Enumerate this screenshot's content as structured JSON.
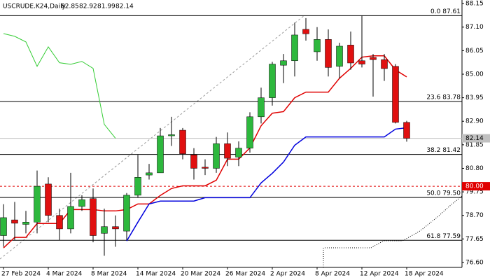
{
  "chart_data": {
    "type": "candlestick",
    "symbol": "USCRUDE.K24,Daily",
    "categories": [
      "27 Feb 2024",
      null,
      null,
      null,
      "4 Mar 2024",
      null,
      null,
      null,
      "8 Mar 2024",
      null,
      null,
      null,
      "14 Mar 2024",
      null,
      null,
      null,
      "20 Mar 2024",
      null,
      null,
      null,
      "26 Mar 2024",
      null,
      null,
      null,
      "2 Apr 2024",
      null,
      null,
      null,
      "8 Apr 2024",
      null,
      null,
      null,
      "12 Apr 2024",
      null,
      null,
      null,
      "18 Apr 2024"
    ],
    "open": [
      77.8,
      78.5,
      78.3,
      78.4,
      80.1,
      78.7,
      78.1,
      79.1,
      79.45,
      77.9,
      78.2,
      78.0,
      79.6,
      80.5,
      80.6,
      82.25,
      82.5,
      81.4,
      80.85,
      80.8,
      81.9,
      81.3,
      81.7,
      83.1,
      83.95,
      85.4,
      85.6,
      87.0,
      86.0,
      86.55,
      85.35,
      86.3,
      85.6,
      85.75,
      85.65,
      85.35,
      82.85
    ],
    "high": [
      79.2,
      79.3,
      78.9,
      80.7,
      80.4,
      79.0,
      80.6,
      79.6,
      79.9,
      79.0,
      78.7,
      79.7,
      81.4,
      81.0,
      82.6,
      83.1,
      82.6,
      81.7,
      81.2,
      82.2,
      82.4,
      82.0,
      83.3,
      84.4,
      85.55,
      85.9,
      87.3,
      87.5,
      87.1,
      87.0,
      86.4,
      86.9,
      87.61,
      85.9,
      85.9,
      85.45,
      82.92
    ],
    "low": [
      77.3,
      77.6,
      77.9,
      77.9,
      78.4,
      77.6,
      77.9,
      78.9,
      77.5,
      76.9,
      77.3,
      77.6,
      79.5,
      80.3,
      80.6,
      81.8,
      81.2,
      80.3,
      80.5,
      80.6,
      80.9,
      80.9,
      81.5,
      82.8,
      83.6,
      84.6,
      84.9,
      86.5,
      85.6,
      84.9,
      84.8,
      85.2,
      85.3,
      84.0,
      84.7,
      82.8,
      81.99
    ],
    "close": [
      78.6,
      78.35,
      78.4,
      80.0,
      78.7,
      78.1,
      79.1,
      79.4,
      77.8,
      78.2,
      78.1,
      79.6,
      80.4,
      80.6,
      82.25,
      82.3,
      81.45,
      80.8,
      80.8,
      81.9,
      81.25,
      81.7,
      83.1,
      83.95,
      85.45,
      85.6,
      86.75,
      86.8,
      86.55,
      85.3,
      86.25,
      85.5,
      85.45,
      85.65,
      85.25,
      82.85,
      82.14
    ],
    "up_color": "#2db83d",
    "down_color": "#e01010",
    "lines": [
      {
        "color": "#33cc33",
        "values": [
          86.81,
          86.69,
          86.44,
          85.35,
          86.22,
          85.51,
          85.44,
          85.57,
          85.26,
          82.76,
          82.14,
          null,
          null,
          null,
          null,
          null,
          null,
          null,
          null,
          null,
          null,
          null,
          null,
          null,
          null,
          null,
          null,
          null,
          null,
          null,
          null,
          null,
          null,
          null,
          null,
          null,
          null
        ]
      },
      {
        "color": "#e00000",
        "values": [
          77.25,
          77.72,
          77.72,
          78.34,
          78.34,
          78.34,
          78.96,
          78.96,
          78.96,
          78.9,
          78.9,
          78.96,
          79.21,
          79.21,
          79.59,
          79.9,
          80.02,
          80.02,
          80.02,
          80.27,
          81.21,
          81.21,
          81.71,
          82.7,
          83.26,
          83.33,
          83.95,
          84.2,
          84.2,
          84.2,
          84.82,
          85.26,
          85.76,
          85.82,
          85.82,
          85.19,
          84.88
        ]
      },
      {
        "color": "#0000dd",
        "values": [
          null,
          null,
          null,
          null,
          null,
          null,
          null,
          null,
          null,
          null,
          null,
          77.56,
          78.4,
          79.21,
          79.34,
          79.34,
          79.34,
          79.34,
          79.49,
          79.49,
          79.49,
          79.49,
          79.49,
          80.15,
          80.58,
          81.08,
          81.83,
          82.2,
          82.2,
          82.2,
          82.2,
          82.2,
          82.2,
          82.2,
          82.2,
          82.55,
          82.61
        ]
      }
    ],
    "fib_levels": [
      {
        "value": 87.61,
        "label": "0.0 87.61"
      },
      {
        "value": 83.78,
        "label": "23.6 83.78"
      },
      {
        "value": 81.42,
        "label": "38.2 81.42"
      },
      {
        "value": 79.5,
        "label": "50.0 79.50"
      },
      {
        "value": 77.59,
        "label": "61.8 77.59"
      }
    ],
    "alert_line": {
      "value": 80,
      "label": "80.00",
      "color": "#e00000"
    },
    "ylim": [
      76.38,
      88.31
    ],
    "yticks": [
      88.15,
      {
        "value": 87.1,
        "label": "87.10"
      },
      86.05,
      {
        "value": 85,
        "label": "85.00"
      },
      83.95,
      {
        "value": 82.9,
        "label": "82.90"
      },
      81.85,
      {
        "value": 80.8,
        "label": "80.80"
      },
      79.75,
      {
        "value": 78.7,
        "label": "78.70"
      },
      77.65,
      {
        "value": 76.6,
        "label": "76.60"
      }
    ]
  }
}
